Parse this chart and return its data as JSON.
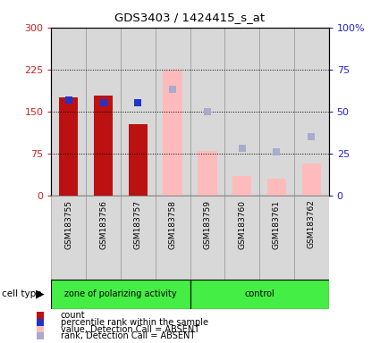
{
  "title": "GDS3403 / 1424415_s_at",
  "samples": [
    "GSM183755",
    "GSM183756",
    "GSM183757",
    "GSM183758",
    "GSM183759",
    "GSM183760",
    "GSM183761",
    "GSM183762"
  ],
  "present_values": [
    175,
    178,
    128,
    null,
    null,
    null,
    null,
    null
  ],
  "present_ranks": [
    57,
    55,
    55,
    null,
    null,
    null,
    null,
    null
  ],
  "absent_values": [
    null,
    null,
    null,
    225,
    80,
    35,
    30,
    58
  ],
  "absent_ranks": [
    null,
    null,
    null,
    63,
    50,
    28,
    26,
    35
  ],
  "bar_color_present": "#bb1111",
  "bar_color_absent": "#ffbbbb",
  "square_color_present": "#2233cc",
  "square_color_absent": "#aaaacc",
  "ylim_left": [
    0,
    300
  ],
  "ylim_right": [
    0,
    100
  ],
  "yticks_left": [
    0,
    75,
    150,
    225,
    300
  ],
  "ytick_labels_left": [
    "0",
    "75",
    "150",
    "225",
    "300"
  ],
  "yticks_right": [
    0,
    25,
    50,
    75,
    100
  ],
  "ytick_labels_right": [
    "0",
    "25",
    "50",
    "75",
    "100%"
  ],
  "hlines": [
    75,
    150,
    225
  ],
  "group1_label": "zone of polarizing activity",
  "group2_label": "control",
  "cell_type_label": "cell type",
  "legend_items": [
    {
      "label": "count",
      "color": "#bb1111"
    },
    {
      "label": "percentile rank within the sample",
      "color": "#2233cc"
    },
    {
      "label": "value, Detection Call = ABSENT",
      "color": "#ffbbbb"
    },
    {
      "label": "rank, Detection Call = ABSENT",
      "color": "#aaaacc"
    }
  ],
  "group_bg_color": "#44ee44",
  "col_bg_color": "#d8d8d8",
  "bar_width": 0.55,
  "square_size": 35
}
